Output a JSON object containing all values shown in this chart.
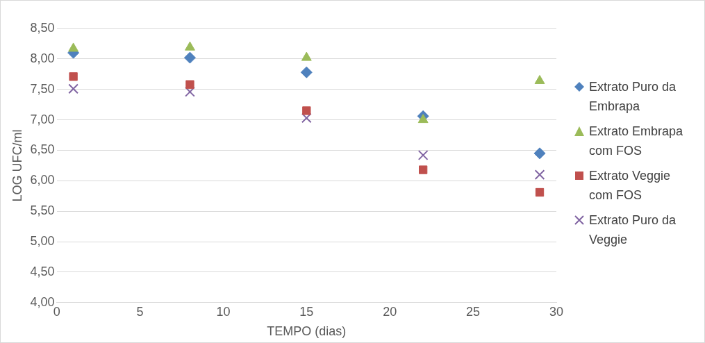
{
  "chart_data": {
    "type": "scatter",
    "xlabel": "TEMPO (dias)",
    "ylabel": "LOG UFC/ml",
    "x": [
      1,
      8,
      15,
      22,
      29
    ],
    "series": [
      {
        "name": "Extrato Puro da Embrapa",
        "color": "#4f81bd",
        "marker": "diamond",
        "values": [
          8.1,
          8.02,
          7.78,
          7.06,
          6.45
        ]
      },
      {
        "name": "Extrato Embrapa com FOS",
        "color": "#9bbb59",
        "marker": "triangle",
        "values": [
          8.17,
          8.19,
          8.02,
          7.0,
          7.64
        ]
      },
      {
        "name": "Extrato Veggie com FOS",
        "color": "#c0504d",
        "marker": "square",
        "values": [
          7.71,
          7.58,
          7.15,
          6.18,
          5.81
        ]
      },
      {
        "name": "Extrato Puro da Veggie",
        "color": "#8064a2",
        "marker": "cross",
        "values": [
          7.51,
          7.46,
          7.03,
          6.42,
          6.1
        ]
      }
    ],
    "xlim": [
      0,
      30
    ],
    "xticks": [
      0,
      5,
      10,
      15,
      20,
      25,
      30
    ],
    "ylim": [
      4,
      8.5
    ],
    "yticks": [
      {
        "value": 4,
        "label": "4,00"
      },
      {
        "value": 4.5,
        "label": "4,50"
      },
      {
        "value": 5,
        "label": "5,00"
      },
      {
        "value": 5.5,
        "label": "5,50"
      },
      {
        "value": 6,
        "label": "6,00"
      },
      {
        "value": 6.5,
        "label": "6,50"
      },
      {
        "value": 7,
        "label": "7,00"
      },
      {
        "value": 7.5,
        "label": "7,50"
      },
      {
        "value": 8,
        "label": "8,00"
      },
      {
        "value": 8.5,
        "label": "8,50"
      }
    ],
    "grid": "y",
    "legend": "right"
  }
}
